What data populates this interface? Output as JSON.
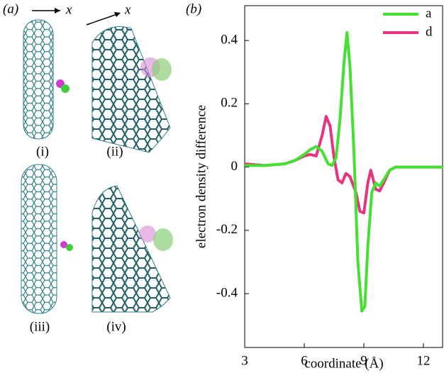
{
  "figure": {
    "panel_a_label": "(a)",
    "arrow_labels": [
      "x",
      "x"
    ],
    "sub_labels": [
      "(i)",
      "(ii)",
      "(iii)",
      "(iv)"
    ]
  },
  "chart_data": {
    "type": "line",
    "panel_label": "(b)",
    "x_label": "coordinate (Å)",
    "y_label": "electron density difference",
    "xlim": [
      3,
      13
    ],
    "ylim": [
      -0.57,
      0.51
    ],
    "xticks": [
      3,
      6,
      9,
      12
    ],
    "yticks": [
      -0.4,
      -0.2,
      0,
      0.2,
      0.4
    ],
    "legend": "upper right",
    "series": [
      {
        "name": "d",
        "color": "#e8347f",
        "x": [
          3,
          4,
          5,
          5.5,
          6,
          6.3,
          6.6,
          6.9,
          7.1,
          7.3,
          7.5,
          7.7,
          7.9,
          8.1,
          8.3,
          8.6,
          8.8,
          9.0,
          9.2,
          9.35,
          9.6,
          9.8,
          10.0,
          10.3,
          10.6,
          13
        ],
        "values": [
          0.01,
          0.005,
          0.01,
          0.02,
          0.035,
          0.04,
          0.035,
          0.1,
          0.16,
          0.13,
          0.03,
          -0.04,
          -0.05,
          -0.02,
          -0.03,
          -0.08,
          -0.14,
          -0.145,
          -0.05,
          -0.01,
          -0.07,
          -0.075,
          -0.05,
          -0.01,
          0,
          0
        ]
      },
      {
        "name": "a",
        "color": "#44e032",
        "x": [
          3,
          4,
          5,
          5.5,
          6,
          6.3,
          6.6,
          6.9,
          7.2,
          7.4,
          7.6,
          7.8,
          8.0,
          8.15,
          8.3,
          8.5,
          8.7,
          8.9,
          9.05,
          9.2,
          9.4,
          9.6,
          9.8,
          10.0,
          10.3,
          10.6,
          13
        ],
        "values": [
          0.005,
          0.005,
          0.01,
          0.02,
          0.04,
          0.055,
          0.065,
          0.05,
          0.01,
          0.005,
          0.03,
          0.15,
          0.33,
          0.425,
          0.32,
          0.05,
          -0.3,
          -0.455,
          -0.44,
          -0.25,
          -0.08,
          -0.05,
          -0.06,
          -0.04,
          -0.01,
          0,
          0
        ]
      }
    ]
  }
}
